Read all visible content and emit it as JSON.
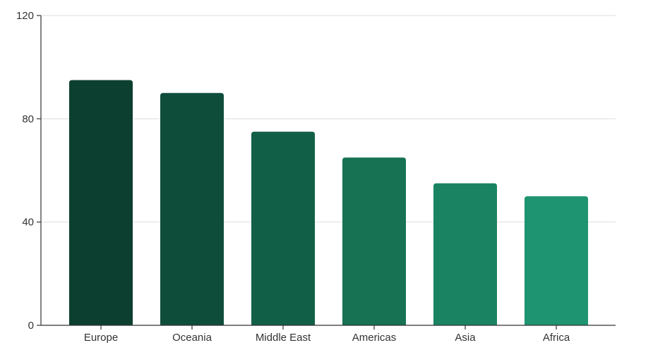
{
  "chart_data": {
    "type": "bar",
    "title": "",
    "xlabel": "",
    "ylabel": "",
    "categories": [
      "Europe",
      "Oceania",
      "Middle East",
      "Americas",
      "Asia",
      "Africa"
    ],
    "values": [
      95,
      90,
      75,
      65,
      55,
      50
    ],
    "ylim": [
      0,
      120
    ],
    "yticks": [
      "0",
      "40",
      "80",
      "120"
    ],
    "grid": true,
    "legend": "none",
    "colors": [
      "#0c3f2f",
      "#0f4d3b",
      "#125f48",
      "#167253",
      "#1a8462",
      "#1e9470"
    ],
    "axis_color": "#333333",
    "grid_color": "#dddddd"
  }
}
